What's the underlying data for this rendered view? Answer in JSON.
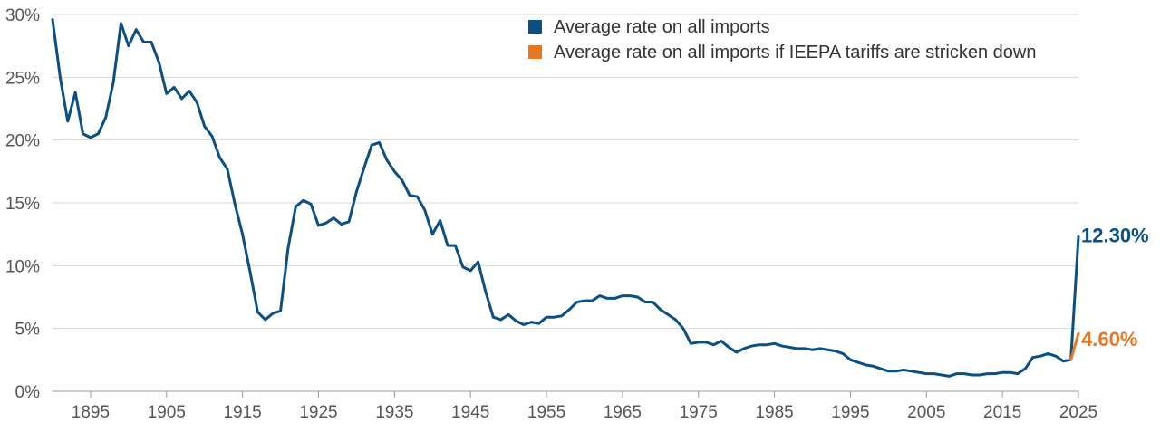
{
  "chart_data": {
    "type": "line",
    "title": "",
    "xlabel": "",
    "ylabel": "",
    "xlim": [
      1889,
      2025
    ],
    "ylim": [
      0,
      30
    ],
    "x_ticks": [
      1895,
      1905,
      1915,
      1925,
      1935,
      1945,
      1955,
      1965,
      1975,
      1985,
      1995,
      2005,
      2015,
      2025
    ],
    "x_tick_labels": [
      "1895",
      "1905",
      "1915",
      "1925",
      "1935",
      "1945",
      "1955",
      "1965",
      "1975",
      "1985",
      "1995",
      "2005",
      "2015",
      "2025"
    ],
    "y_ticks": [
      0,
      5,
      10,
      15,
      20,
      25,
      30
    ],
    "y_tick_labels": [
      "0%",
      "5%",
      "10%",
      "15%",
      "20%",
      "25%",
      "30%"
    ],
    "grid": "horizontal",
    "legend_position": "top-center",
    "series": [
      {
        "name": "Average rate on all imports",
        "color": "#0b4f83",
        "end_label": "12.30%",
        "x": [
          1890,
          1891,
          1892,
          1893,
          1894,
          1895,
          1896,
          1897,
          1898,
          1899,
          1900,
          1901,
          1902,
          1903,
          1904,
          1905,
          1906,
          1907,
          1908,
          1909,
          1910,
          1911,
          1912,
          1913,
          1914,
          1915,
          1916,
          1917,
          1918,
          1919,
          1920,
          1921,
          1922,
          1923,
          1924,
          1925,
          1926,
          1927,
          1928,
          1929,
          1930,
          1931,
          1932,
          1933,
          1934,
          1935,
          1936,
          1937,
          1938,
          1939,
          1940,
          1941,
          1942,
          1943,
          1944,
          1945,
          1946,
          1947,
          1948,
          1949,
          1950,
          1951,
          1952,
          1953,
          1954,
          1955,
          1956,
          1957,
          1958,
          1959,
          1960,
          1961,
          1962,
          1963,
          1964,
          1965,
          1966,
          1967,
          1968,
          1969,
          1970,
          1971,
          1972,
          1973,
          1974,
          1975,
          1976,
          1977,
          1978,
          1979,
          1980,
          1981,
          1982,
          1983,
          1984,
          1985,
          1986,
          1987,
          1988,
          1989,
          1990,
          1991,
          1992,
          1993,
          1994,
          1995,
          1996,
          1997,
          1998,
          1999,
          2000,
          2001,
          2002,
          2003,
          2004,
          2005,
          2006,
          2007,
          2008,
          2009,
          2010,
          2011,
          2012,
          2013,
          2014,
          2015,
          2016,
          2017,
          2018,
          2019,
          2020,
          2021,
          2022,
          2023,
          2024,
          2025
        ],
        "values": [
          29.6,
          25.0,
          21.5,
          23.8,
          20.5,
          20.2,
          20.5,
          21.8,
          24.6,
          29.3,
          27.5,
          28.8,
          27.8,
          27.8,
          26.2,
          23.7,
          24.2,
          23.3,
          23.9,
          23.0,
          21.1,
          20.3,
          18.6,
          17.7,
          14.9,
          12.5,
          9.5,
          6.3,
          5.7,
          6.2,
          6.4,
          11.4,
          14.7,
          15.2,
          14.9,
          13.2,
          13.4,
          13.8,
          13.3,
          13.5,
          15.9,
          17.8,
          19.6,
          19.8,
          18.4,
          17.5,
          16.8,
          15.6,
          15.5,
          14.4,
          12.5,
          13.6,
          11.6,
          11.6,
          9.9,
          9.6,
          10.3,
          7.9,
          5.9,
          5.7,
          6.1,
          5.6,
          5.3,
          5.5,
          5.4,
          5.9,
          5.9,
          6.0,
          6.5,
          7.1,
          7.2,
          7.2,
          7.6,
          7.4,
          7.4,
          7.6,
          7.6,
          7.5,
          7.1,
          7.1,
          6.5,
          6.1,
          5.7,
          5.0,
          3.8,
          3.9,
          3.9,
          3.7,
          4.0,
          3.5,
          3.1,
          3.4,
          3.6,
          3.7,
          3.7,
          3.8,
          3.6,
          3.5,
          3.4,
          3.4,
          3.3,
          3.4,
          3.3,
          3.2,
          3.0,
          2.5,
          2.3,
          2.1,
          2.0,
          1.8,
          1.6,
          1.6,
          1.7,
          1.6,
          1.5,
          1.4,
          1.4,
          1.3,
          1.2,
          1.4,
          1.4,
          1.3,
          1.3,
          1.4,
          1.4,
          1.5,
          1.5,
          1.4,
          1.8,
          2.7,
          2.8,
          3.0,
          2.8,
          2.4,
          2.5,
          12.3
        ]
      },
      {
        "name": "Average rate on all imports if IEEPA tariffs are stricken down",
        "color": "#e87722",
        "end_label": "4.60%",
        "x": [
          2024,
          2025
        ],
        "values": [
          2.5,
          4.6
        ]
      }
    ]
  }
}
